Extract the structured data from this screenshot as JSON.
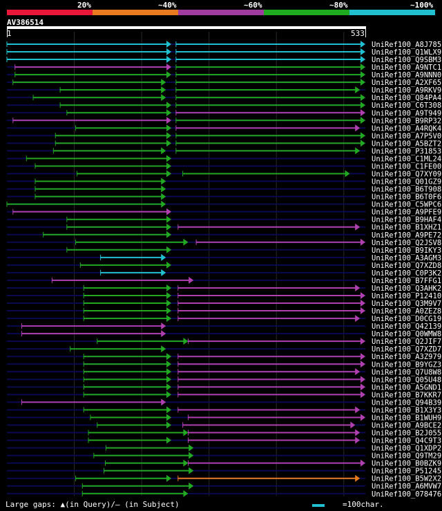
{
  "legend": {
    "labels": [
      "20%",
      "~40%",
      "~60%",
      "~80%",
      "~100%"
    ],
    "colors": [
      "#e8173a",
      "#e87a1f",
      "#a03ca0",
      "#1faa1f",
      "#20c0d0"
    ]
  },
  "query": {
    "id": "AV386514",
    "start": "1",
    "end": "533",
    "length": 533
  },
  "colors": {
    "cyan": "#20c0d0",
    "green": "#22a822",
    "magenta": "#b040b0",
    "orange": "#e87a1f",
    "navy": "#0a0a50",
    "grid": "#2a2a2a"
  },
  "hits": [
    {
      "name": "UniRef100_A8J785",
      "segments": [
        [
          1,
          245,
          "cyan"
        ],
        [
          252,
          533,
          "cyan"
        ]
      ]
    },
    {
      "name": "UniRef100_Q1WLX9",
      "segments": [
        [
          1,
          245,
          "cyan"
        ],
        [
          252,
          533,
          "cyan"
        ]
      ]
    },
    {
      "name": "UniRef100_Q9SBM3",
      "segments": [
        [
          1,
          245,
          "cyan"
        ],
        [
          252,
          533,
          "cyan"
        ]
      ]
    },
    {
      "name": "UniRef100_A9NTC1",
      "segments": [
        [
          13,
          245,
          "magenta"
        ],
        [
          252,
          533,
          "green"
        ]
      ]
    },
    {
      "name": "UniRef100_A9NNN0",
      "segments": [
        [
          13,
          245,
          "green"
        ],
        [
          252,
          533,
          "green"
        ]
      ]
    },
    {
      "name": "UniRef100_A2XF65",
      "segments": [
        [
          10,
          237,
          "green"
        ],
        [
          252,
          533,
          "green"
        ]
      ]
    },
    {
      "name": "UniRef100_A9RKV9",
      "segments": [
        [
          80,
          237,
          "green"
        ],
        [
          252,
          525,
          "green"
        ]
      ]
    },
    {
      "name": "UniRef100_Q84PA4",
      "segments": [
        [
          40,
          237,
          "green"
        ],
        [
          252,
          533,
          "green"
        ]
      ]
    },
    {
      "name": "UniRef100_C6T308",
      "segments": [
        [
          80,
          245,
          "green"
        ],
        [
          252,
          533,
          "green"
        ]
      ]
    },
    {
      "name": "UniRef100_A9T949",
      "segments": [
        [
          90,
          245,
          "green"
        ],
        [
          252,
          533,
          "magenta"
        ]
      ]
    },
    {
      "name": "UniRef100_B9RP32",
      "segments": [
        [
          10,
          245,
          "magenta"
        ],
        [
          252,
          533,
          "green"
        ]
      ]
    },
    {
      "name": "UniRef100_A4RQK4",
      "segments": [
        [
          103,
          245,
          "green"
        ],
        [
          252,
          525,
          "magenta"
        ]
      ]
    },
    {
      "name": "UniRef100_A7P5V0",
      "segments": [
        [
          73,
          245,
          "green"
        ],
        [
          252,
          533,
          "green"
        ]
      ]
    },
    {
      "name": "UniRef100_A5BZT2",
      "segments": [
        [
          73,
          245,
          "green"
        ],
        [
          252,
          533,
          "green"
        ]
      ]
    },
    {
      "name": "UniRef100_P31853",
      "segments": [
        [
          70,
          237,
          "green"
        ],
        [
          252,
          525,
          "green"
        ]
      ]
    },
    {
      "name": "UniRef100_C1ML24",
      "segments": [
        [
          30,
          245,
          "green"
        ]
      ]
    },
    {
      "name": "UniRef100_C1FE00",
      "segments": [
        [
          43,
          245,
          "green"
        ]
      ]
    },
    {
      "name": "UniRef100_Q7XY09",
      "segments": [
        [
          105,
          245,
          "green"
        ],
        [
          262,
          510,
          "green"
        ]
      ]
    },
    {
      "name": "UniRef100_Q01GZ9",
      "segments": [
        [
          43,
          237,
          "green"
        ]
      ]
    },
    {
      "name": "UniRef100_B6T908",
      "segments": [
        [
          43,
          237,
          "green"
        ]
      ]
    },
    {
      "name": "UniRef100_B6T0F6",
      "segments": [
        [
          43,
          237,
          "green"
        ]
      ]
    },
    {
      "name": "UniRef100_C5WPC6",
      "segments": [
        [
          1,
          237,
          "green"
        ]
      ]
    },
    {
      "name": "UniRef100_A9PFE9",
      "segments": [
        [
          10,
          245,
          "magenta"
        ]
      ]
    },
    {
      "name": "UniRef100_B9HAF4",
      "segments": [
        [
          90,
          245,
          "green"
        ]
      ]
    },
    {
      "name": "UniRef100_B1XHZ1",
      "segments": [
        [
          90,
          245,
          "green"
        ],
        [
          255,
          525,
          "magenta"
        ]
      ]
    },
    {
      "name": "UniRef100_A9PE72",
      "segments": [
        [
          55,
          245,
          "green"
        ]
      ]
    },
    {
      "name": "UniRef100_Q2JSV8",
      "segments": [
        [
          103,
          270,
          "green"
        ],
        [
          282,
          533,
          "magenta"
        ]
      ]
    },
    {
      "name": "UniRef100_B9IKY3",
      "segments": [
        [
          90,
          245,
          "green"
        ]
      ]
    },
    {
      "name": "UniRef100_A3AGM3",
      "segments": [
        [
          140,
          237,
          "cyan"
        ]
      ]
    },
    {
      "name": "UniRef100_Q7XZD8",
      "segments": [
        [
          110,
          245,
          "green"
        ]
      ]
    },
    {
      "name": "UniRef100_C0P3K2",
      "segments": [
        [
          140,
          237,
          "cyan"
        ]
      ]
    },
    {
      "name": "UniRef100_B7FFG1",
      "segments": [
        [
          68,
          278,
          "magenta"
        ]
      ]
    },
    {
      "name": "UniRef100_Q3AHK2",
      "segments": [
        [
          115,
          245,
          "green"
        ],
        [
          255,
          525,
          "magenta"
        ]
      ]
    },
    {
      "name": "UniRef100_P12410",
      "segments": [
        [
          115,
          245,
          "green"
        ],
        [
          255,
          533,
          "magenta"
        ]
      ]
    },
    {
      "name": "UniRef100_Q3M9V7",
      "segments": [
        [
          115,
          245,
          "green"
        ],
        [
          255,
          533,
          "magenta"
        ]
      ]
    },
    {
      "name": "UniRef100_A0ZEZ8",
      "segments": [
        [
          115,
          245,
          "green"
        ],
        [
          255,
          533,
          "magenta"
        ]
      ]
    },
    {
      "name": "UniRef100_D0CG19",
      "segments": [
        [
          115,
          245,
          "green"
        ],
        [
          255,
          525,
          "magenta"
        ]
      ]
    },
    {
      "name": "UniRef100_Q42139",
      "segments": [
        [
          23,
          237,
          "magenta"
        ]
      ]
    },
    {
      "name": "UniRef100_Q0WMW8",
      "segments": [
        [
          23,
          237,
          "magenta"
        ]
      ]
    },
    {
      "name": "UniRef100_Q2JIF7",
      "segments": [
        [
          135,
          270,
          "green"
        ],
        [
          270,
          533,
          "magenta"
        ]
      ]
    },
    {
      "name": "UniRef100_Q7XZD7",
      "segments": [
        [
          95,
          237,
          "green"
        ]
      ]
    },
    {
      "name": "UniRef100_A3Z979",
      "segments": [
        [
          115,
          245,
          "green"
        ],
        [
          255,
          533,
          "magenta"
        ]
      ]
    },
    {
      "name": "UniRef100_B9YGZ3",
      "segments": [
        [
          115,
          245,
          "green"
        ],
        [
          255,
          533,
          "magenta"
        ]
      ]
    },
    {
      "name": "UniRef100_Q7U8W8",
      "segments": [
        [
          115,
          245,
          "green"
        ],
        [
          255,
          525,
          "magenta"
        ]
      ]
    },
    {
      "name": "UniRef100_Q05U48",
      "segments": [
        [
          115,
          245,
          "green"
        ],
        [
          255,
          533,
          "magenta"
        ]
      ]
    },
    {
      "name": "UniRef100_A5GND1",
      "segments": [
        [
          115,
          245,
          "green"
        ],
        [
          255,
          533,
          "magenta"
        ]
      ]
    },
    {
      "name": "UniRef100_B7KKR7",
      "segments": [
        [
          115,
          245,
          "green"
        ],
        [
          255,
          533,
          "magenta"
        ]
      ]
    },
    {
      "name": "UniRef100_Q94B39",
      "segments": [
        [
          23,
          237,
          "magenta"
        ]
      ]
    },
    {
      "name": "UniRef100_B1X3Y3",
      "segments": [
        [
          115,
          245,
          "green"
        ],
        [
          255,
          525,
          "magenta"
        ]
      ]
    },
    {
      "name": "UniRef100_B1WUH9",
      "segments": [
        [
          125,
          245,
          "green"
        ],
        [
          270,
          533,
          "magenta"
        ]
      ]
    },
    {
      "name": "UniRef100_A9BCE2",
      "segments": [
        [
          135,
          245,
          "green"
        ],
        [
          262,
          518,
          "magenta"
        ]
      ]
    },
    {
      "name": "UniRef100_B2J055",
      "segments": [
        [
          122,
          270,
          "green"
        ],
        [
          270,
          525,
          "magenta"
        ]
      ]
    },
    {
      "name": "UniRef100_Q4C9T3",
      "segments": [
        [
          122,
          245,
          "green"
        ],
        [
          270,
          525,
          "magenta"
        ]
      ]
    },
    {
      "name": "UniRef100_Q1XDP2",
      "segments": [
        [
          148,
          278,
          "green"
        ]
      ]
    },
    {
      "name": "UniRef100_Q9TM29",
      "segments": [
        [
          130,
          278,
          "green"
        ]
      ]
    },
    {
      "name": "UniRef100_B0BZK9",
      "segments": [
        [
          147,
          270,
          "green"
        ],
        [
          270,
          533,
          "magenta"
        ]
      ]
    },
    {
      "name": "UniRef100_P51245",
      "segments": [
        [
          145,
          278,
          "green"
        ]
      ]
    },
    {
      "name": "UniRef100_B5W2X2",
      "segments": [
        [
          103,
          245,
          "green"
        ],
        [
          255,
          525,
          "orange"
        ]
      ]
    },
    {
      "name": "UniRef100_A6MVW7",
      "segments": [
        [
          113,
          278,
          "green"
        ]
      ]
    },
    {
      "name": "UniRef100_078476",
      "segments": [
        [
          113,
          270,
          "green"
        ]
      ]
    }
  ],
  "footer": {
    "large_gaps": "Large gaps: ▲(in Query)/— (in Subject)",
    "scale": "=100char."
  }
}
